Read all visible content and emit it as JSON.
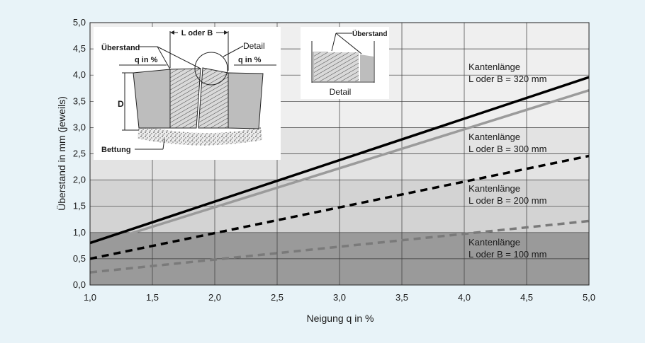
{
  "chart_data": {
    "type": "line",
    "xlabel": "Neigung q in %",
    "ylabel": "Überstand in mm (jeweils)",
    "xlim": [
      1.0,
      5.0
    ],
    "ylim": [
      0.0,
      5.0
    ],
    "x_ticks": [
      "1,0",
      "1,5",
      "2,0",
      "2,5",
      "3,0",
      "3,5",
      "4,0",
      "4,5",
      "5,0"
    ],
    "y_ticks": [
      "0,0",
      "0,5",
      "1,0",
      "1,5",
      "2,0",
      "2,5",
      "3,0",
      "3,5",
      "4,0",
      "4,5",
      "5,0"
    ],
    "grid": true,
    "bands": [
      {
        "from": 0.0,
        "to": 1.0,
        "color": "#9a9a9a"
      },
      {
        "from": 1.0,
        "to": 2.0,
        "color": "#d3d3d3"
      },
      {
        "from": 2.0,
        "to": 3.0,
        "color": "#e3e3e3"
      },
      {
        "from": 3.0,
        "to": 5.0,
        "color": "#efefef"
      }
    ],
    "series": [
      {
        "name": "Kantenlänge L oder B = 320 mm",
        "line1": "Kantenlänge",
        "line2": "L oder B = 320 mm",
        "x": [
          1.0,
          5.0
        ],
        "y": [
          0.8,
          3.96
        ],
        "color": "#000000",
        "style": "solid"
      },
      {
        "name": "Kantenlänge L oder B = 300 mm",
        "line1": "Kantenlänge",
        "line2": "L oder B = 300 mm",
        "x": [
          1.0,
          5.0
        ],
        "y": [
          0.74,
          3.71
        ],
        "color": "#9b9b9b",
        "style": "solid"
      },
      {
        "name": "Kantenlänge L oder B = 200 mm",
        "line1": "Kantenlänge",
        "line2": "L oder B = 200 mm",
        "x": [
          1.0,
          5.0
        ],
        "y": [
          0.5,
          2.46
        ],
        "color": "#000000",
        "style": "dashed"
      },
      {
        "name": "Kantenlänge L oder B = 100 mm",
        "line1": "Kantenlänge",
        "line2": "L oder B = 100 mm",
        "x": [
          1.0,
          5.0
        ],
        "y": [
          0.24,
          1.22
        ],
        "color": "#7a7a7a",
        "style": "dashed"
      }
    ],
    "inset_labels": {
      "l_oder_b": "L oder B",
      "ueberstand": "Überstand",
      "detail": "Detail",
      "q_left": "q in %",
      "q_right": "q in %",
      "d": "D",
      "bettung": "Bettung",
      "detail_ueberstand": "Überstand",
      "detail_caption": "Detail"
    }
  }
}
